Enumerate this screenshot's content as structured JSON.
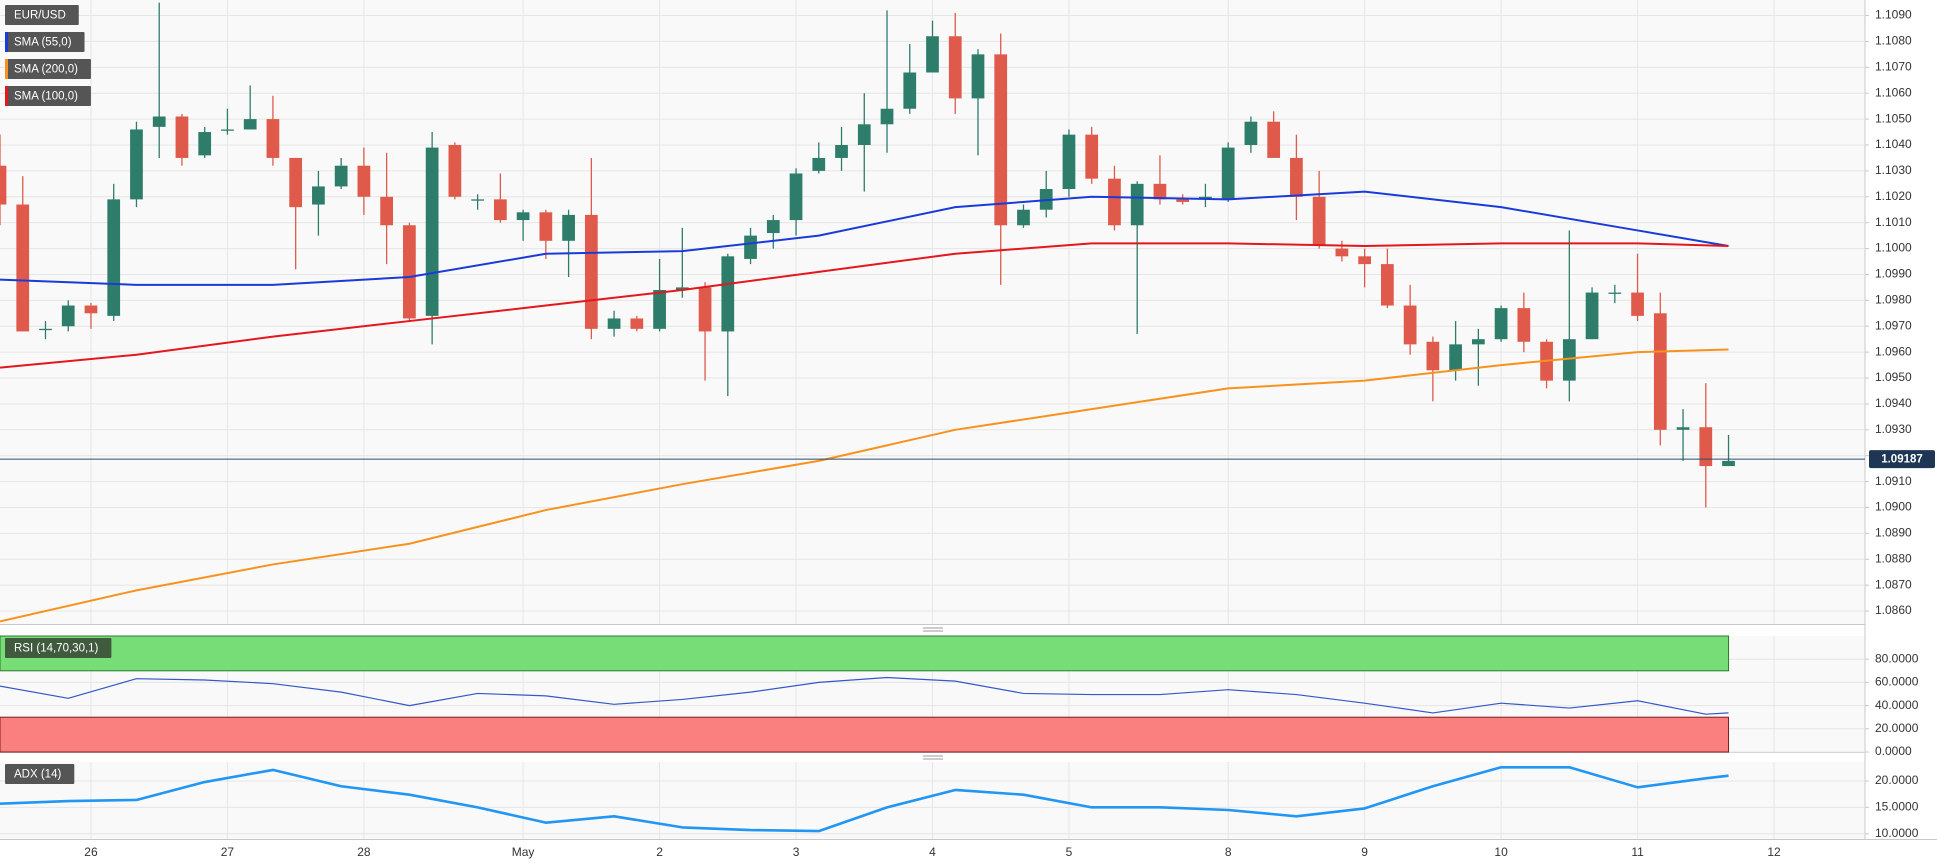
{
  "chart_data": [
    {
      "type": "candlestick",
      "title": "EUR/USD",
      "up_color": "#2e7d6b",
      "down_color": "#df5a4b",
      "open": [
        1.1032,
        1.1017,
        1.0969,
        1.097,
        1.0978,
        1.0974,
        1.1019,
        1.1047,
        1.1051,
        1.1036,
        1.1046,
        1.1046,
        1.105,
        1.1035,
        1.1017,
        1.1024,
        1.1032,
        1.102,
        1.1009,
        1.0974,
        1.104,
        1.1019,
        1.1019,
        1.1011,
        1.1014,
        1.1003,
        1.1013,
        1.0969,
        1.0973,
        1.0969,
        1.0984,
        1.0985,
        1.0968,
        1.0996,
        1.1006,
        1.1011,
        1.103,
        1.1035,
        1.104,
        1.1048,
        1.1054,
        1.1068,
        1.1082,
        1.1058,
        1.1075,
        1.1009,
        1.1015,
        1.1023,
        1.1044,
        1.1027,
        1.1009,
        1.1025,
        1.1019,
        1.1019,
        1.1019,
        1.104,
        1.1049,
        1.1035,
        1.102,
        1.1,
        1.0997,
        1.0994,
        1.0978,
        1.0964,
        1.0953,
        1.0963,
        1.0965,
        1.0977,
        1.0964,
        1.0949,
        1.0965,
        1.0983,
        1.0983,
        1.0975,
        1.093,
        1.0931,
        1.0916
      ],
      "high": [
        1.1044,
        1.1028,
        1.0972,
        1.098,
        1.0979,
        1.1025,
        1.1049,
        1.1095,
        1.1052,
        1.1047,
        1.1054,
        1.1063,
        1.1059,
        1.1035,
        1.103,
        1.1035,
        1.1039,
        1.1037,
        1.101,
        1.1045,
        1.1041,
        1.1021,
        1.1029,
        1.1015,
        1.1015,
        1.1015,
        1.1035,
        1.0976,
        1.0974,
        1.0996,
        1.1008,
        1.0987,
        1.0998,
        1.1008,
        1.1013,
        1.1031,
        1.1041,
        1.1047,
        1.106,
        1.1092,
        1.1079,
        1.1088,
        1.1091,
        1.1077,
        1.1083,
        1.1017,
        1.103,
        1.1046,
        1.1047,
        1.1032,
        1.1026,
        1.1036,
        1.1021,
        1.1025,
        1.1041,
        1.1051,
        1.1053,
        1.1044,
        1.103,
        1.1003,
        1.1,
        1.1,
        1.0986,
        1.0966,
        1.0972,
        1.0969,
        1.0978,
        1.0983,
        1.0965,
        1.1007,
        1.0985,
        1.0986,
        1.0998,
        1.0983,
        1.0938,
        1.0948,
        1.0928
      ],
      "low": [
        1.1009,
        1.0968,
        1.0965,
        1.0968,
        1.0969,
        1.0972,
        1.1016,
        1.1035,
        1.1032,
        1.1035,
        1.1044,
        1.1046,
        1.1032,
        1.0992,
        1.1005,
        1.1023,
        1.1013,
        1.0994,
        1.0972,
        1.0963,
        1.1019,
        1.1015,
        1.101,
        1.1003,
        1.0996,
        1.0989,
        1.0965,
        1.0966,
        1.0968,
        1.0968,
        1.0981,
        1.0949,
        1.0943,
        1.0994,
        1.1,
        1.1005,
        1.1029,
        1.103,
        1.1022,
        1.1037,
        1.1052,
        1.1068,
        1.1052,
        1.1036,
        1.0986,
        1.1008,
        1.1012,
        1.102,
        1.1025,
        1.1007,
        1.0967,
        1.1017,
        1.1017,
        1.1016,
        1.1018,
        1.1037,
        1.1035,
        1.1011,
        1.1,
        1.0995,
        1.0985,
        1.0977,
        1.0959,
        1.0941,
        1.0949,
        1.0947,
        1.0964,
        1.096,
        1.0946,
        1.0941,
        1.0965,
        1.0979,
        1.0972,
        1.0924,
        1.0918,
        1.09,
        1.0916
      ],
      "close": [
        1.1017,
        1.0968,
        1.0969,
        1.0978,
        1.0975,
        1.1019,
        1.1046,
        1.1051,
        1.1035,
        1.1045,
        1.1046,
        1.105,
        1.1035,
        1.1016,
        1.1024,
        1.1032,
        1.102,
        1.1009,
        1.0973,
        1.1039,
        1.102,
        1.1019,
        1.1011,
        1.1014,
        1.1003,
        1.1013,
        1.0969,
        1.0973,
        1.0969,
        1.0984,
        1.0985,
        1.0968,
        1.0997,
        1.1005,
        1.1011,
        1.1029,
        1.1035,
        1.104,
        1.1048,
        1.1054,
        1.1068,
        1.1082,
        1.1058,
        1.1075,
        1.1009,
        1.1015,
        1.1023,
        1.1044,
        1.1027,
        1.1009,
        1.1025,
        1.1019,
        1.1018,
        1.102,
        1.1039,
        1.1049,
        1.1035,
        1.102,
        1.1001,
        1.0997,
        1.0994,
        1.0978,
        1.0963,
        1.0953,
        1.0963,
        1.0965,
        1.0977,
        1.0964,
        1.0949,
        1.0965,
        1.0983,
        1.0983,
        1.0974,
        1.093,
        1.0931,
        1.0916,
        1.0918
      ],
      "series": [
        {
          "name": "SMA (55,0)",
          "color": "#1a3bd8",
          "x": [
            0,
            6,
            12,
            18,
            24,
            30,
            36,
            42,
            48,
            54,
            60,
            66,
            72,
            76
          ],
          "values": [
            1.0988,
            1.0986,
            1.0986,
            1.0989,
            1.0998,
            1.0999,
            1.1005,
            1.1016,
            1.102,
            1.1019,
            1.1022,
            1.1016,
            1.1007,
            1.1001
          ]
        },
        {
          "name": "SMA (200,0)",
          "color": "#f7921e",
          "x": [
            0,
            6,
            12,
            18,
            24,
            30,
            36,
            42,
            48,
            54,
            60,
            66,
            72,
            76
          ],
          "values": [
            1.0856,
            1.0868,
            1.0878,
            1.0886,
            1.0899,
            1.0909,
            1.0918,
            1.093,
            1.0938,
            1.0946,
            1.0949,
            1.0955,
            1.096,
            1.0961
          ]
        },
        {
          "name": "SMA (100,0)",
          "color": "#e3171d",
          "x": [
            0,
            6,
            12,
            18,
            24,
            30,
            36,
            42,
            48,
            54,
            60,
            66,
            72,
            76
          ],
          "values": [
            1.0954,
            1.0959,
            1.0966,
            1.0972,
            1.0978,
            1.0984,
            1.0991,
            1.0998,
            1.1002,
            1.1002,
            1.1001,
            1.1002,
            1.1002,
            1.1001
          ]
        }
      ],
      "last_price": 1.09187,
      "xlim": [
        0,
        82
      ],
      "xticks": [
        {
          "value": 4,
          "label": "26"
        },
        {
          "value": 10,
          "label": "27"
        },
        {
          "value": 16,
          "label": "28"
        },
        {
          "value": 23,
          "label": "May"
        },
        {
          "value": 29,
          "label": "2"
        },
        {
          "value": 35,
          "label": "3"
        },
        {
          "value": 41,
          "label": "4"
        },
        {
          "value": 47,
          "label": "5"
        },
        {
          "value": 54,
          "label": "8"
        },
        {
          "value": 60,
          "label": "9"
        },
        {
          "value": 66,
          "label": "10"
        },
        {
          "value": 72,
          "label": "11"
        },
        {
          "value": 78,
          "label": "12"
        }
      ],
      "ylim": [
        1.0855,
        1.1096
      ],
      "yticks": [
        {
          "value": 1.086,
          "label": "1.0860"
        },
        {
          "value": 1.087,
          "label": "1.0870"
        },
        {
          "value": 1.088,
          "label": "1.0880"
        },
        {
          "value": 1.089,
          "label": "1.0890"
        },
        {
          "value": 1.09,
          "label": "1.0900"
        },
        {
          "value": 1.091,
          "label": "1.0910"
        },
        {
          "value": 1.092,
          "label": "1.0920"
        },
        {
          "value": 1.093,
          "label": "1.0930"
        },
        {
          "value": 1.094,
          "label": "1.0940"
        },
        {
          "value": 1.095,
          "label": "1.0950"
        },
        {
          "value": 1.096,
          "label": "1.0960"
        },
        {
          "value": 1.097,
          "label": "1.0970"
        },
        {
          "value": 1.098,
          "label": "1.0980"
        },
        {
          "value": 1.099,
          "label": "1.0990"
        },
        {
          "value": 1.1,
          "label": "1.1000"
        },
        {
          "value": 1.101,
          "label": "1.1010"
        },
        {
          "value": 1.102,
          "label": "1.1020"
        },
        {
          "value": 1.103,
          "label": "1.1030"
        },
        {
          "value": 1.104,
          "label": "1.1040"
        },
        {
          "value": 1.105,
          "label": "1.1050"
        },
        {
          "value": 1.106,
          "label": "1.1060"
        },
        {
          "value": 1.107,
          "label": "1.1070"
        },
        {
          "value": 1.108,
          "label": "1.1080"
        },
        {
          "value": 1.109,
          "label": "1.1090"
        }
      ],
      "grid": true
    },
    {
      "type": "line",
      "title": "RSI (14,70,30,1)",
      "color": "#3558c8",
      "x": [
        0,
        3,
        6,
        9,
        12,
        15,
        18,
        21,
        24,
        27,
        30,
        33,
        36,
        39,
        42,
        45,
        48,
        51,
        54,
        57,
        60,
        63,
        66,
        69,
        72,
        75,
        76
      ],
      "values": [
        56.8,
        46.3,
        63.2,
        62.1,
        58.9,
        51.6,
        40.0,
        50.5,
        48.4,
        41.1,
        45.3,
        51.6,
        60.0,
        64.2,
        61.1,
        50.5,
        49.5,
        49.5,
        53.7,
        49.5,
        42.1,
        33.7,
        42.1,
        37.9,
        44.2,
        32.6,
        33.7
      ],
      "overbought": 70,
      "oversold": 30,
      "overbought_color": "#77dd77",
      "oversold_color": "#fa8080",
      "ylim": [
        0,
        100
      ],
      "yticks": [
        {
          "value": 0,
          "label": "0.0000"
        },
        {
          "value": 20,
          "label": "20.0000"
        },
        {
          "value": 40,
          "label": "40.0000"
        },
        {
          "value": 60,
          "label": "60.0000"
        },
        {
          "value": 80,
          "label": "80.0000"
        }
      ]
    },
    {
      "type": "line",
      "title": "ADX (14)",
      "color": "#2196f3",
      "x": [
        0,
        3,
        6,
        9,
        12,
        15,
        18,
        21,
        24,
        27,
        30,
        33,
        36,
        39,
        42,
        45,
        48,
        51,
        54,
        57,
        60,
        63,
        66,
        69,
        72,
        75,
        76
      ],
      "values": [
        15.7,
        16.2,
        16.4,
        19.8,
        22.1,
        19.0,
        17.4,
        15.0,
        12.1,
        13.3,
        11.2,
        10.7,
        10.5,
        15.0,
        18.3,
        17.4,
        15.0,
        15.0,
        14.5,
        13.3,
        14.8,
        19.0,
        22.6,
        22.6,
        18.8,
        20.5,
        21.0
      ],
      "ylim": [
        9,
        23.6
      ],
      "yticks": [
        {
          "value": 10,
          "label": "10.0000"
        },
        {
          "value": 15,
          "label": "15.0000"
        },
        {
          "value": 20,
          "label": "20.0000"
        }
      ]
    }
  ]
}
